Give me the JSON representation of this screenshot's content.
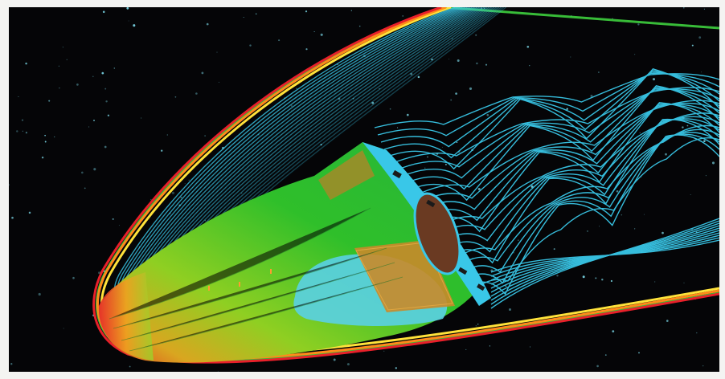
{
  "image": {
    "subject": "cfd-flow-visualization-reentry-vehicle",
    "background_color": "#050507",
    "border_color": "#f4f4f2"
  },
  "palette": {
    "shock_red": "#e8202a",
    "shock_orange": "#ff8a1a",
    "shock_yellow": "#ffe23a",
    "shock_green": "#3ed03e",
    "streamline_cyan": "#39c7e8",
    "body_green": "#2fbf2a",
    "body_yellow_green": "#9bd12a",
    "panel_orange": "#c98a2a",
    "window_brown": "#6a3a22",
    "star_color": "#7fe0f0"
  },
  "icons": [
    "star-field",
    "shock-wave",
    "streamlines",
    "vehicle-body"
  ]
}
